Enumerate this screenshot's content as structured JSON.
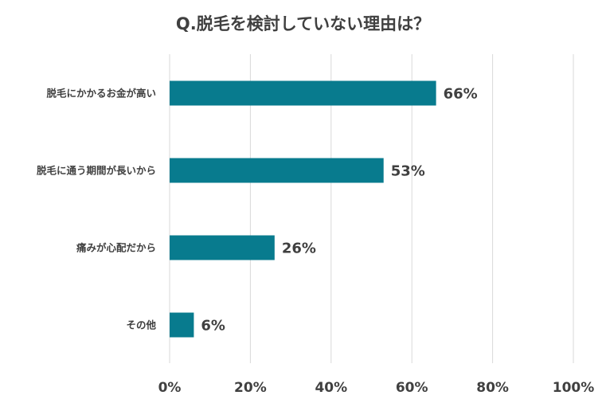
{
  "chart_data": {
    "type": "bar",
    "orientation": "horizontal",
    "title": "Q.脱毛を検討していない理由は？",
    "categories": [
      "脱毛にかかるお金が高い",
      "脱毛に通う期間が長いから",
      "痛みが心配だから",
      "その他"
    ],
    "values": [
      66,
      53,
      26,
      6
    ],
    "value_labels": [
      "66%",
      "53%",
      "26%",
      "6%"
    ],
    "xlim": [
      0,
      100
    ],
    "x_ticks": [
      0,
      20,
      40,
      60,
      80,
      100
    ],
    "x_tick_labels": [
      "0%",
      "20%",
      "40%",
      "60%",
      "80%",
      "100%"
    ],
    "grid": true,
    "bar_color": "#087b8e"
  }
}
